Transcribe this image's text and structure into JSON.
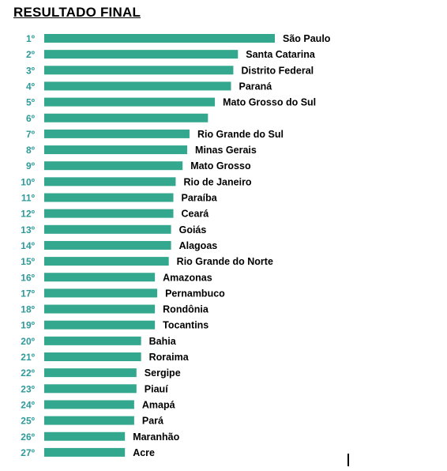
{
  "chart_data": {
    "type": "bar",
    "orientation": "horizontal",
    "title": "RESULTADO FINAL",
    "bar_color": "#34a88e",
    "rank_color": "#2e9a9a",
    "gridlines": false,
    "axis_visible": false,
    "xlim": [
      0,
      100
    ],
    "ranks": [
      "1º",
      "2º",
      "3º",
      "4º",
      "5º",
      "6º",
      "7º",
      "8º",
      "9º",
      "10º",
      "11º",
      "12º",
      "13º",
      "14º",
      "15º",
      "16º",
      "17º",
      "18º",
      "19º",
      "20º",
      "21º",
      "22º",
      "23º",
      "24º",
      "25º",
      "26º",
      "27º"
    ],
    "categories": [
      "São Paulo",
      "Santa Catarina",
      "Distrito Federal",
      "Paraná",
      "Mato Grosso do Sul",
      "",
      "Rio Grande do Sul",
      "Minas Gerais",
      "Mato Grosso",
      "Rio de Janeiro",
      "Paraíba",
      "Ceará",
      "Goiás",
      "Alagoas",
      "Rio Grande do Norte",
      "Amazonas",
      "Pernambuco",
      "Rondônia",
      "Tocantins",
      "Bahia",
      "Roraima",
      "Sergipe",
      "Piauí",
      "Amapá",
      "Pará",
      "Maranhão",
      "Acre"
    ],
    "values": [
      100,
      84,
      82,
      81,
      74,
      71,
      63,
      62,
      60,
      57,
      56,
      56,
      55,
      55,
      54,
      48,
      49,
      48,
      48,
      42,
      42,
      40,
      40,
      39,
      39,
      35,
      35
    ]
  }
}
